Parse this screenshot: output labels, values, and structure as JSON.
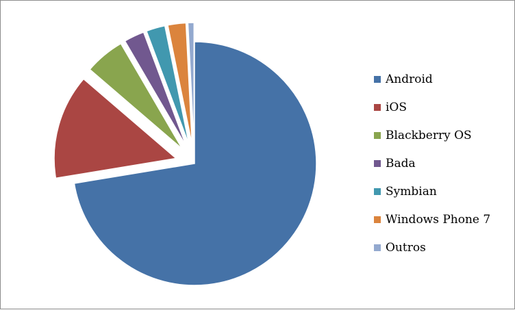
{
  "chart_data": {
    "type": "pie",
    "title": "",
    "categories": [
      "Android",
      "iOS",
      "Blackberry OS",
      "Bada",
      "Symbian",
      "Windows Phone 7",
      "Outros"
    ],
    "values": [
      72.4,
      13.9,
      5.3,
      2.7,
      2.5,
      2.4,
      0.8
    ],
    "unit": "%",
    "exploded": [
      true,
      true,
      true,
      true,
      true,
      true,
      true
    ],
    "legend_position": "right",
    "colors": [
      "#4572A7",
      "#AA4643",
      "#89A54E",
      "#71588F",
      "#4198AF",
      "#DB843D",
      "#93A9CF"
    ]
  }
}
